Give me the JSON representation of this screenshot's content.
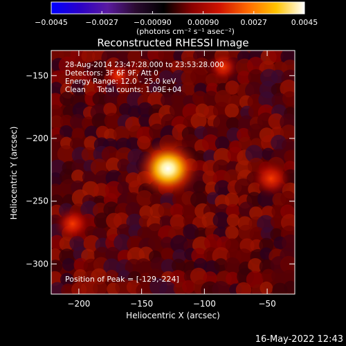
{
  "chart_data": {
    "type": "heatmap",
    "title": "Reconstructed RHESSI Image",
    "xlabel": "Heliocentric X (arcsec)",
    "ylabel": "Heliocentric Y (arcsec)",
    "xlim": [
      -222,
      -28
    ],
    "ylim": [
      -324,
      -130
    ],
    "x_ticks": [
      -200,
      -150,
      -100,
      -50
    ],
    "y_ticks": [
      -150,
      -200,
      -250,
      -300
    ],
    "colorbar": {
      "min": -0.0045,
      "max": 0.0045,
      "ticks": [
        "-0.0045",
        "-0.0027",
        "-0.00090",
        "0.00090",
        "0.0027",
        "0.0045"
      ],
      "unit_label": "(photons cm⁻² s⁻¹ asec⁻²)",
      "colormap": [
        "#0000ff",
        "#2a00c8",
        "#5a1aa0",
        "#2a0a30",
        "#000000",
        "#8a0000",
        "#d01400",
        "#ff6a00",
        "#ffc400",
        "#ffffff"
      ]
    },
    "annotations": [
      "28-Aug-2014 23:47:28.000 to 23:53:28.000",
      "Detectors: 3F 6F 9F, Att 0",
      "Energy Range: 12.0 - 25.0 keV",
      "Clean     Total counts: 1.09E+04"
    ],
    "peak_label": "Position of Peak = [-129,-224]",
    "sources": [
      {
        "x": -129,
        "y": -224,
        "value": 0.0045
      },
      {
        "x": -47,
        "y": -232,
        "value": 0.0022
      },
      {
        "x": -205,
        "y": -268,
        "value": 0.0018
      },
      {
        "x": -85,
        "y": -143,
        "value": 0.0014
      },
      {
        "x": -168,
        "y": -150,
        "value": 0.0011
      }
    ]
  },
  "footer": {
    "timestamp": "16-May-2022 12:43"
  }
}
